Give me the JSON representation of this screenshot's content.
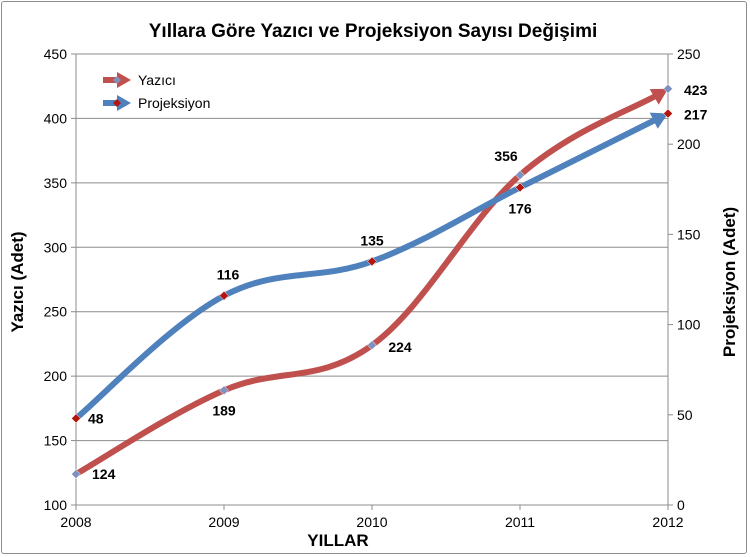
{
  "chart_data": {
    "type": "line",
    "title": "Yıllara Göre Yazıcı ve Projeksiyon Sayısı Değişimi",
    "xlabel": "YILLAR",
    "ylabel": "Yazıcı (Adet)",
    "y2label": "Projeksiyon (Adet)",
    "categories": [
      "2008",
      "2009",
      "2010",
      "2011",
      "2012"
    ],
    "ylim": [
      100,
      450
    ],
    "y2lim": [
      0,
      250
    ],
    "yticks": [
      "100",
      "150",
      "200",
      "250",
      "300",
      "350",
      "400",
      "450"
    ],
    "y2ticks": [
      "0",
      "50",
      "100",
      "150",
      "200",
      "250"
    ],
    "grid": true,
    "legend_position": "top-left",
    "series": [
      {
        "name": "Yazıcı",
        "axis": "left",
        "color": "#c0504d",
        "values": [
          124,
          189,
          224,
          356,
          423
        ],
        "labels": [
          "124",
          "189",
          "224",
          "356",
          "423"
        ]
      },
      {
        "name": "Projeksiyon",
        "axis": "right",
        "color": "#4f81bd",
        "values": [
          48,
          116,
          135,
          176,
          217
        ],
        "labels": [
          "48",
          "116",
          "135",
          "176",
          "217"
        ]
      }
    ]
  }
}
